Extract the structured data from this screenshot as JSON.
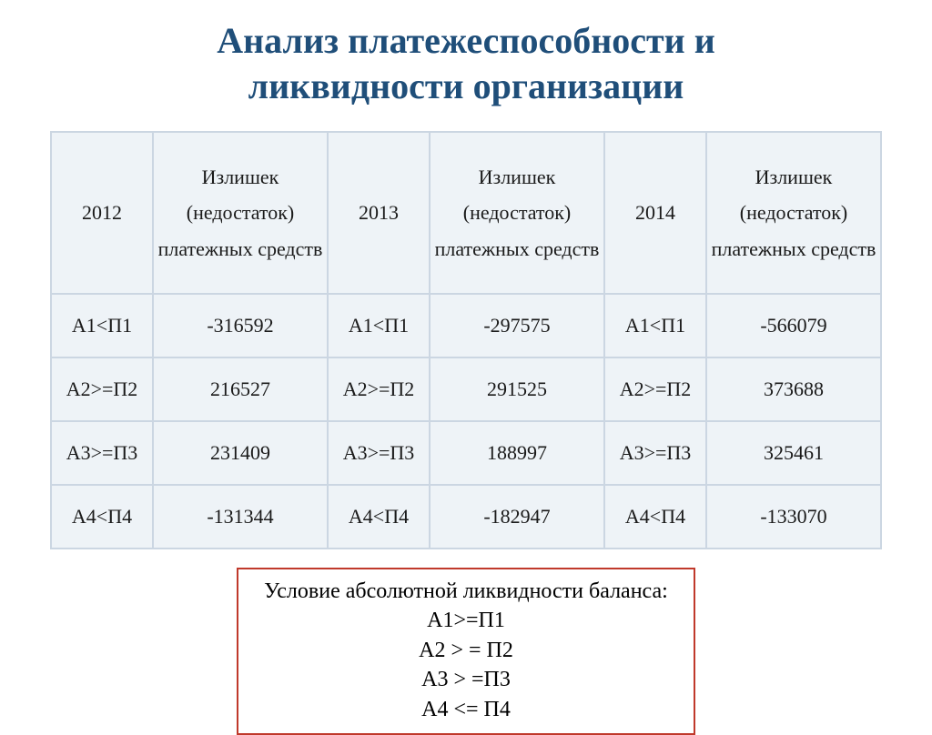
{
  "title_line1": "Анализ платежеспособности и",
  "title_line2": "ликвидности организации",
  "table": {
    "header_bg": "#eef3f7",
    "border_color": "#cbd6e2",
    "columns": [
      {
        "label": "2012"
      },
      {
        "label": "Излишек (недостаток) платежных средств"
      },
      {
        "label": "2013"
      },
      {
        "label": "Излишек (недостаток) платежных средств"
      },
      {
        "label": "2014"
      },
      {
        "label": "Излишек (недостаток) платежных средств"
      }
    ],
    "rows": [
      [
        "А1<П1",
        "-316592",
        "А1<П1",
        "-297575",
        "А1<П1",
        "-566079"
      ],
      [
        "А2>=П2",
        "216527",
        "А2>=П2",
        "291525",
        "А2>=П2",
        "373688"
      ],
      [
        "А3>=П3",
        "231409",
        "А3>=П3",
        "188997",
        "А3>=П3",
        "325461"
      ],
      [
        "А4<П4",
        "-131344",
        "А4<П4",
        "-182947",
        "А4<П4",
        "-133070"
      ]
    ]
  },
  "condition": {
    "border_color": "#c0392b",
    "heading": "Условие абсолютной ликвидности баланса:",
    "lines": [
      "А1>=П1",
      "А2 > = П2",
      "А3 > =П3",
      "А4 <= П4"
    ]
  }
}
